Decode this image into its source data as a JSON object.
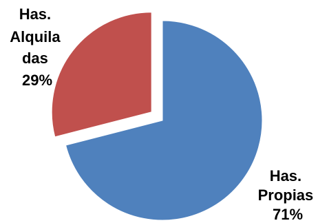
{
  "chart_data": {
    "type": "pie",
    "title": "",
    "slices": [
      {
        "category_lines": [
          "Has.",
          "Propias"
        ],
        "percent_label": "71%",
        "value": 71,
        "color": "#4F81BD",
        "exploded": false
      },
      {
        "category_lines": [
          "Has.",
          "Alquila",
          "das"
        ],
        "percent_label": "29%",
        "value": 29,
        "color": "#C0504D",
        "exploded": true
      }
    ],
    "start_angle_deg": 0,
    "direction": "clockwise"
  }
}
